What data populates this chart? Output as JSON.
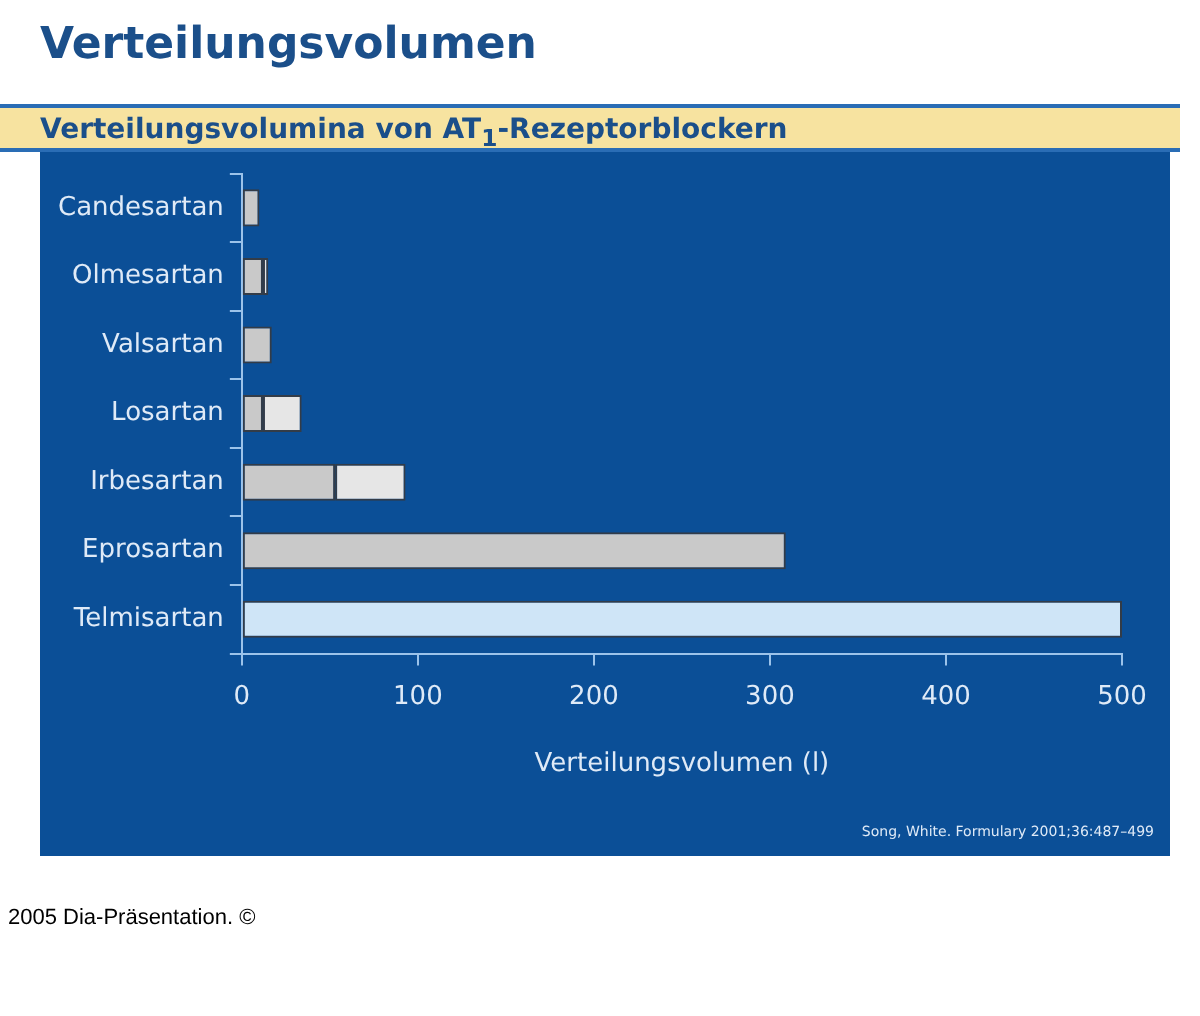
{
  "chart_data": {
    "type": "bar",
    "orientation": "horizontal",
    "stacked": true,
    "title": "Verteilungsvolumen",
    "subtitle": "Verteilungsvolumina von AT$_{1}$-Rezeptorblockern",
    "xlabel": "Verteilungsvolumen (l)",
    "categories": [
      "Candesartan",
      "Olmesartan",
      "Valsartan",
      "Losartan",
      "Irbesartan",
      "Eprosartan",
      "Telmisartan"
    ],
    "series": [
      {
        "colors": [
          "#c9c9c9",
          "#c9c9c9",
          "#c9c9c9",
          "#c9c9c9",
          "#c9c9c9",
          "#c9c9c9",
          "#cfe5f7"
        ],
        "values": [
          10,
          12,
          17,
          12,
          53,
          309,
          500
        ]
      },
      {
        "color": "#e6e6e6",
        "values": [
          null,
          3,
          null,
          22,
          40,
          null,
          null
        ]
      }
    ],
    "xlim": [
      0,
      500
    ],
    "xticks": [
      0,
      100,
      200,
      300,
      400,
      500
    ],
    "grid": false,
    "legend": false,
    "annotations": [
      "Song, White. Formulary 2001;36:487–499",
      "2005 Dia-Präsentation. ©"
    ]
  }
}
